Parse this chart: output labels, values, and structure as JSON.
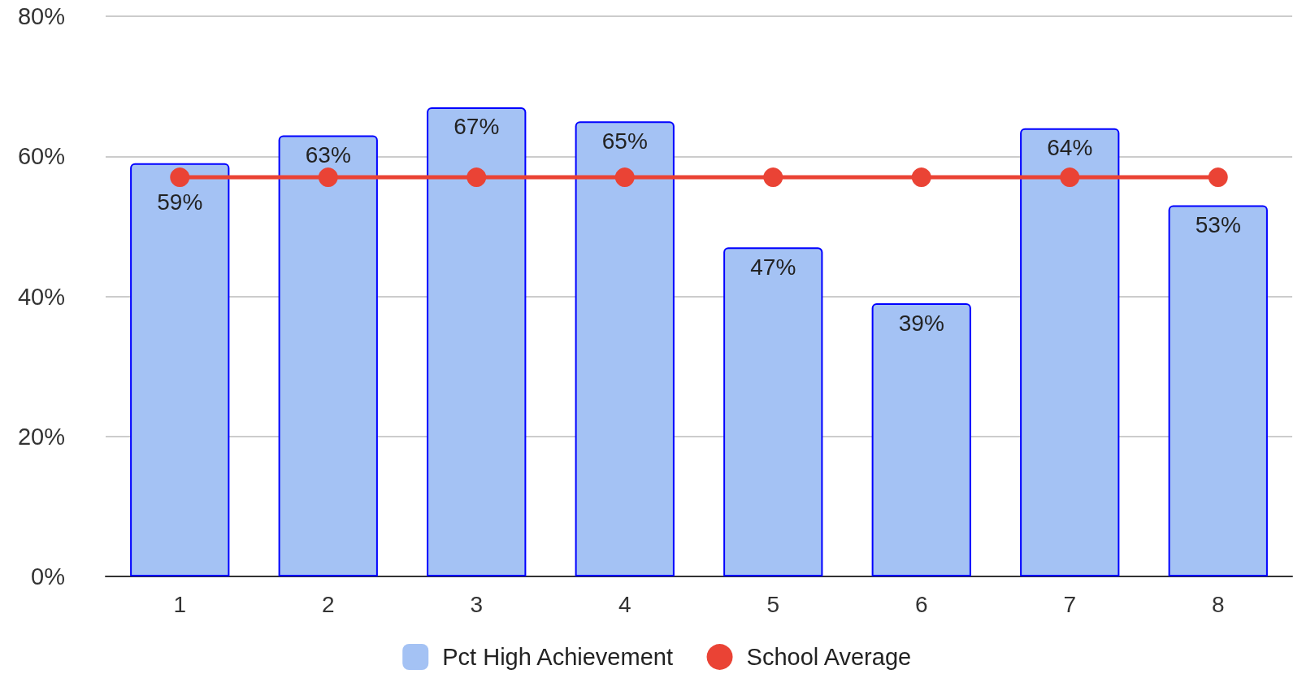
{
  "chart_data": {
    "type": "bar",
    "categories": [
      "1",
      "2",
      "3",
      "4",
      "5",
      "6",
      "7",
      "8"
    ],
    "series": [
      {
        "name": "Pct High Achievement",
        "color": "#a4c2f4",
        "values": [
          59,
          63,
          67,
          65,
          47,
          39,
          64,
          53
        ],
        "value_labels": [
          "59%",
          "63%",
          "67%",
          "65%",
          "47%",
          "39%",
          "64%",
          "53%"
        ]
      },
      {
        "name": "School Average",
        "type": "line",
        "color": "#ea4335",
        "values": [
          57,
          57,
          57,
          57,
          57,
          57,
          57,
          57
        ]
      }
    ],
    "ylim": [
      0,
      80
    ],
    "yticks": [
      {
        "value": 0,
        "label": "0%"
      },
      {
        "value": 20,
        "label": "20%"
      },
      {
        "value": 40,
        "label": "40%"
      },
      {
        "value": 60,
        "label": "60%"
      },
      {
        "value": 80,
        "label": "80%"
      }
    ],
    "grid": "y",
    "legend": "bottom",
    "marker": "circle"
  }
}
